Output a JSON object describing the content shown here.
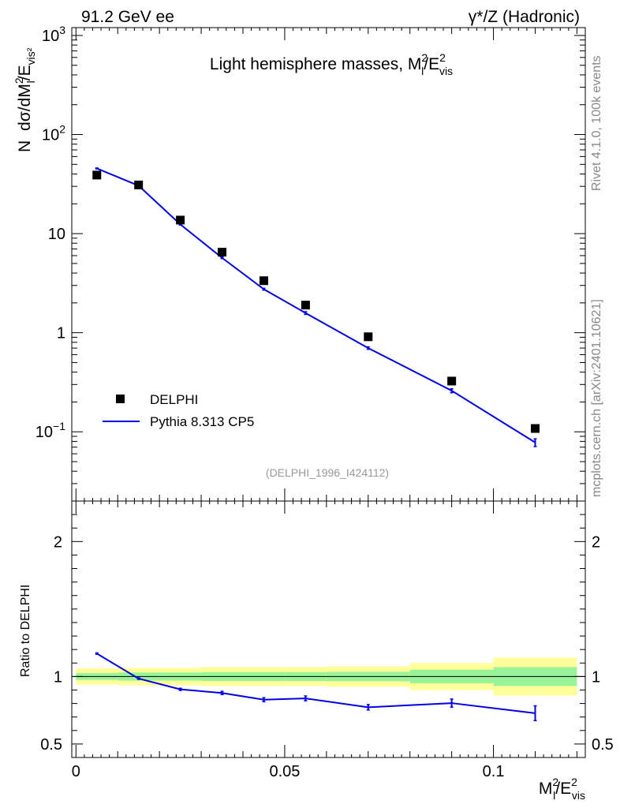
{
  "header": {
    "left": "91.2 GeV ee",
    "right": "γ*/Z (Hadronic)"
  },
  "side_labels": {
    "rivet": "Rivet 4.1.0,  100k events",
    "mcplots": "mcplots.cern.ch [arXiv:2401.10621]"
  },
  "colors": {
    "mc": "#0000e6",
    "data": "#000000",
    "band_inner": "#99f399",
    "band_outer": "#ffff99"
  },
  "chart_data": {
    "type": "line",
    "title": "Light hemisphere masses, M_l^2/E_vis^2",
    "title_parts": {
      "main": "Light hemisphere masses, M",
      "sub": "l",
      "sup": "2",
      "slash": "/E",
      "sup2": "2",
      "sub2": "vis"
    },
    "analysis_id": "(DELPHI_1996_I424112)",
    "xlabel": "M_l^2/E_vis^2",
    "ylabel": "N  dσ/dM_l^2/E_vis^2",
    "ratio_ylabel": "Ratio to DELPHI",
    "xlim": [
      -0.001,
      0.122
    ],
    "ylim_main": [
      0.02,
      1200
    ],
    "ylim_ratio": [
      0.4,
      2.3
    ],
    "x_ticks": [
      0,
      0.05,
      0.1
    ],
    "x_tick_labels": [
      "0",
      "0.05",
      "0.1"
    ],
    "ratio_ticks": [
      0.5,
      1,
      2
    ],
    "ratio_tick_labels": [
      "0.5",
      "1",
      "2"
    ],
    "main_ticks": [
      {
        "value": 0.1,
        "base": "10",
        "exp": "−1"
      },
      {
        "value": 1,
        "base": "1",
        "exp": ""
      },
      {
        "value": 10,
        "base": "10",
        "exp": ""
      },
      {
        "value": 100,
        "base": "10",
        "exp": "2"
      },
      {
        "value": 1000,
        "base": "10",
        "exp": "3"
      }
    ],
    "legend": [
      {
        "label": "DELPHI",
        "kind": "marker"
      },
      {
        "label": "Pythia 8.313 CP5",
        "kind": "line"
      }
    ],
    "bins": [
      {
        "lo": 0.0,
        "hi": 0.01
      },
      {
        "lo": 0.01,
        "hi": 0.02
      },
      {
        "lo": 0.02,
        "hi": 0.03
      },
      {
        "lo": 0.03,
        "hi": 0.04
      },
      {
        "lo": 0.04,
        "hi": 0.05
      },
      {
        "lo": 0.05,
        "hi": 0.06
      },
      {
        "lo": 0.06,
        "hi": 0.08
      },
      {
        "lo": 0.08,
        "hi": 0.1
      },
      {
        "lo": 0.1,
        "hi": 0.12
      }
    ],
    "series": [
      {
        "name": "DELPHI",
        "x": [
          0.005,
          0.015,
          0.025,
          0.035,
          0.045,
          0.055,
          0.07,
          0.09,
          0.11
        ],
        "values": [
          39,
          31,
          13.7,
          6.5,
          3.35,
          1.9,
          0.91,
          0.325,
          0.108
        ]
      },
      {
        "name": "Pythia 8.313 CP5",
        "x": [
          0.005,
          0.015,
          0.025,
          0.035,
          0.045,
          0.055,
          0.07,
          0.09,
          0.11
        ],
        "values": [
          45.5,
          30.5,
          12.4,
          5.7,
          2.75,
          1.58,
          0.7,
          0.26,
          0.078
        ],
        "errors": [
          0.5,
          0.4,
          0.2,
          0.1,
          0.06,
          0.05,
          0.02,
          0.012,
          0.007
        ]
      }
    ],
    "ratio": {
      "x": [
        0.005,
        0.015,
        0.025,
        0.035,
        0.045,
        0.055,
        0.07,
        0.09,
        0.11
      ],
      "values": [
        1.17,
        0.985,
        0.905,
        0.878,
        0.828,
        0.838,
        0.772,
        0.803,
        0.728
      ],
      "errors": [
        0.005,
        0.006,
        0.008,
        0.012,
        0.015,
        0.018,
        0.02,
        0.03,
        0.055
      ],
      "band_inner": [
        0.025,
        0.03,
        0.03,
        0.033,
        0.033,
        0.033,
        0.035,
        0.05,
        0.07
      ],
      "band_outer": [
        0.06,
        0.065,
        0.065,
        0.07,
        0.07,
        0.07,
        0.075,
        0.1,
        0.14
      ]
    }
  }
}
